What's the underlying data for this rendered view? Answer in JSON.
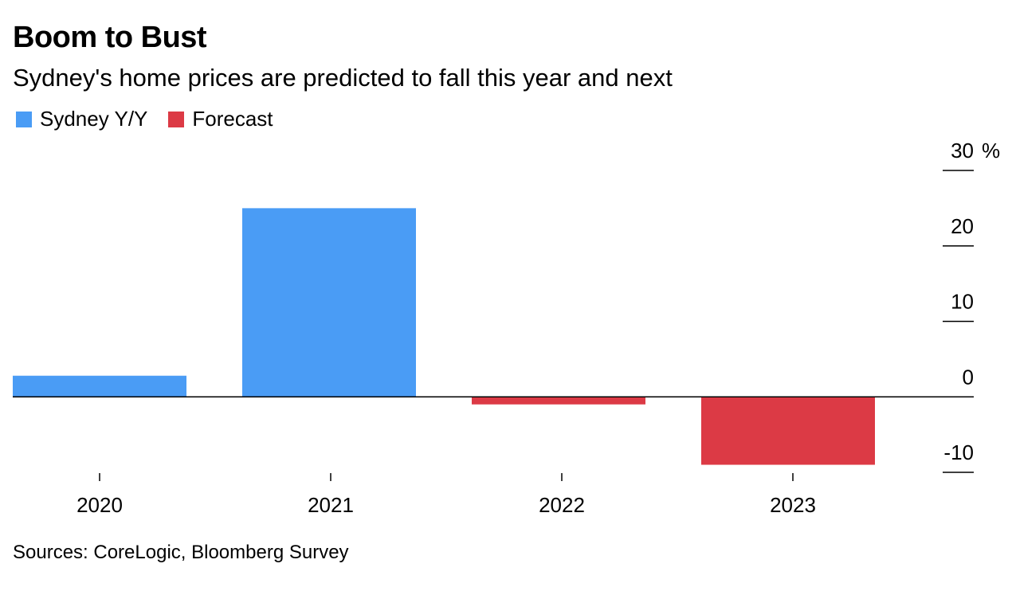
{
  "title": "Boom to Bust",
  "subtitle": "Sydney's home prices are predicted to fall this year and next",
  "legend": [
    {
      "label": "Sydney Y/Y",
      "color": "#4a9cf5"
    },
    {
      "label": "Forecast",
      "color": "#dc3a45"
    }
  ],
  "source": "Sources: CoreLogic, Bloomberg Survey",
  "chart_data": {
    "type": "bar",
    "categories": [
      "2020",
      "2021",
      "2022",
      "2023"
    ],
    "values": [
      2.8,
      25.0,
      -1.0,
      -9.0
    ],
    "series_of_bar": [
      "Sydney Y/Y",
      "Sydney Y/Y",
      "Forecast",
      "Forecast"
    ],
    "colors": {
      "Sydney Y/Y": "#4a9cf5",
      "Forecast": "#dc3a45"
    },
    "ylim": [
      -10,
      30
    ],
    "yticks": [
      30,
      20,
      10,
      0,
      -10
    ],
    "ytick_labels": [
      "30",
      "20",
      "10",
      "0",
      "-10"
    ],
    "yunit": "%",
    "axis_side": "right",
    "grid": false
  }
}
